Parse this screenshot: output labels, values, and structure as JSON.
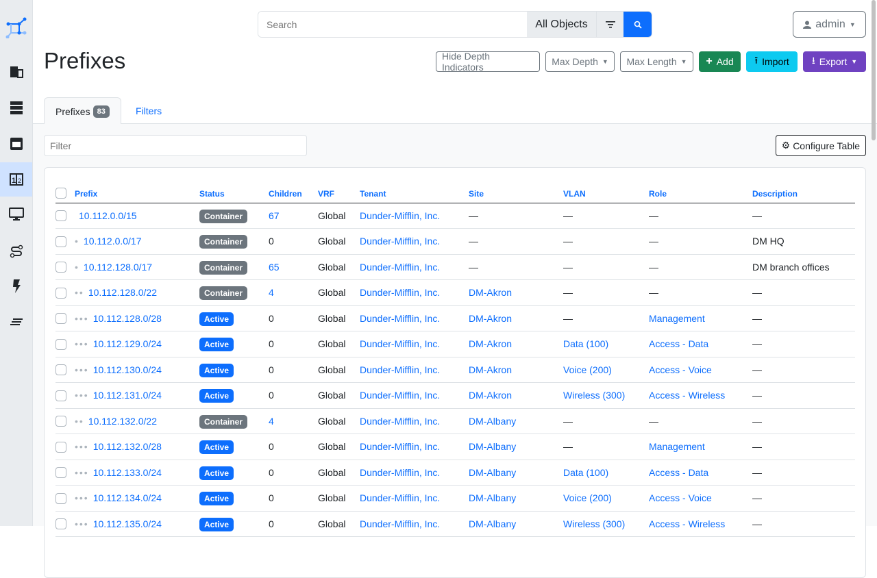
{
  "sidebar": {
    "items": [
      {
        "icon": "building-icon"
      },
      {
        "icon": "server-rack-icon"
      },
      {
        "icon": "ethernet-port-icon"
      },
      {
        "icon": "ipam-numbers-icon",
        "active": true
      },
      {
        "icon": "monitor-icon"
      },
      {
        "icon": "circuit-path-icon"
      },
      {
        "icon": "power-bolt-icon"
      },
      {
        "icon": "menu-lines-icon"
      }
    ]
  },
  "search": {
    "placeholder": "Search",
    "scope": "All Objects"
  },
  "user": {
    "name": "admin"
  },
  "page": {
    "title": "Prefixes"
  },
  "actions": {
    "hide_depth": "Hide Depth Indicators",
    "max_depth": "Max Depth",
    "max_length": "Max Length",
    "add": "Add",
    "import": "Import",
    "export": "Export"
  },
  "tabs": {
    "prefixes": "Prefixes",
    "count": "83",
    "filters": "Filters"
  },
  "filter": {
    "placeholder": "Filter"
  },
  "configure": "Configure Table",
  "colors": {
    "container": "#6c757d",
    "active": "#0d6efd"
  },
  "table": {
    "headers": [
      "Prefix",
      "Status",
      "Children",
      "VRF",
      "Tenant",
      "Site",
      "VLAN",
      "Role",
      "Description"
    ],
    "rows": [
      {
        "depth": 0,
        "prefix": "10.112.0.0/15",
        "status": "Container",
        "children": "67",
        "vrf": "Global",
        "tenant": "Dunder-Mifflin, Inc.",
        "site": "—",
        "vlan": "—",
        "role": "—",
        "description": "—"
      },
      {
        "depth": 1,
        "prefix": "10.112.0.0/17",
        "status": "Container",
        "children": "0",
        "vrf": "Global",
        "tenant": "Dunder-Mifflin, Inc.",
        "site": "—",
        "vlan": "—",
        "role": "—",
        "description": "DM HQ"
      },
      {
        "depth": 1,
        "prefix": "10.112.128.0/17",
        "status": "Container",
        "children": "65",
        "vrf": "Global",
        "tenant": "Dunder-Mifflin, Inc.",
        "site": "—",
        "vlan": "—",
        "role": "—",
        "description": "DM branch offices"
      },
      {
        "depth": 2,
        "prefix": "10.112.128.0/22",
        "status": "Container",
        "children": "4",
        "vrf": "Global",
        "tenant": "Dunder-Mifflin, Inc.",
        "site": "DM-Akron",
        "vlan": "—",
        "role": "—",
        "description": "—"
      },
      {
        "depth": 3,
        "prefix": "10.112.128.0/28",
        "status": "Active",
        "children": "0",
        "vrf": "Global",
        "tenant": "Dunder-Mifflin, Inc.",
        "site": "DM-Akron",
        "vlan": "—",
        "role": "Management",
        "description": "—"
      },
      {
        "depth": 3,
        "prefix": "10.112.129.0/24",
        "status": "Active",
        "children": "0",
        "vrf": "Global",
        "tenant": "Dunder-Mifflin, Inc.",
        "site": "DM-Akron",
        "vlan": "Data (100)",
        "role": "Access - Data",
        "description": "—"
      },
      {
        "depth": 3,
        "prefix": "10.112.130.0/24",
        "status": "Active",
        "children": "0",
        "vrf": "Global",
        "tenant": "Dunder-Mifflin, Inc.",
        "site": "DM-Akron",
        "vlan": "Voice (200)",
        "role": "Access - Voice",
        "description": "—"
      },
      {
        "depth": 3,
        "prefix": "10.112.131.0/24",
        "status": "Active",
        "children": "0",
        "vrf": "Global",
        "tenant": "Dunder-Mifflin, Inc.",
        "site": "DM-Akron",
        "vlan": "Wireless (300)",
        "role": "Access - Wireless",
        "description": "—"
      },
      {
        "depth": 2,
        "prefix": "10.112.132.0/22",
        "status": "Container",
        "children": "4",
        "vrf": "Global",
        "tenant": "Dunder-Mifflin, Inc.",
        "site": "DM-Albany",
        "vlan": "—",
        "role": "—",
        "description": "—"
      },
      {
        "depth": 3,
        "prefix": "10.112.132.0/28",
        "status": "Active",
        "children": "0",
        "vrf": "Global",
        "tenant": "Dunder-Mifflin, Inc.",
        "site": "DM-Albany",
        "vlan": "—",
        "role": "Management",
        "description": "—"
      },
      {
        "depth": 3,
        "prefix": "10.112.133.0/24",
        "status": "Active",
        "children": "0",
        "vrf": "Global",
        "tenant": "Dunder-Mifflin, Inc.",
        "site": "DM-Albany",
        "vlan": "Data (100)",
        "role": "Access - Data",
        "description": "—"
      },
      {
        "depth": 3,
        "prefix": "10.112.134.0/24",
        "status": "Active",
        "children": "0",
        "vrf": "Global",
        "tenant": "Dunder-Mifflin, Inc.",
        "site": "DM-Albany",
        "vlan": "Voice (200)",
        "role": "Access - Voice",
        "description": "—"
      },
      {
        "depth": 3,
        "prefix": "10.112.135.0/24",
        "status": "Active",
        "children": "0",
        "vrf": "Global",
        "tenant": "Dunder-Mifflin, Inc.",
        "site": "DM-Albany",
        "vlan": "Wireless (300)",
        "role": "Access - Wireless",
        "description": "—"
      }
    ]
  }
}
